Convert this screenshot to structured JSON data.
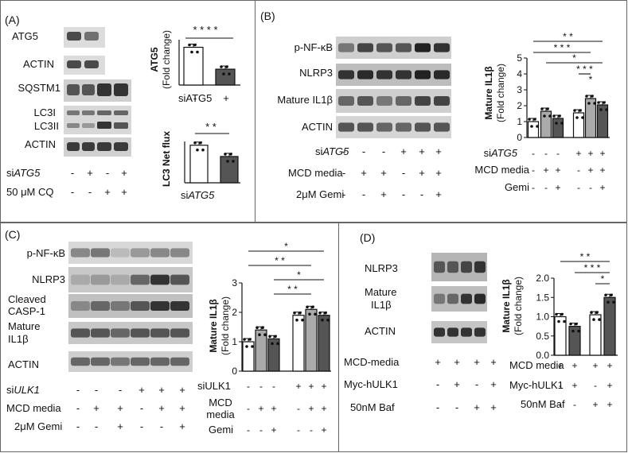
{
  "panels": {
    "A": {
      "label": "(A)",
      "blot_labels": [
        "ATG5",
        "ACTIN",
        "SQSTM1",
        "LC3I",
        "LC3II",
        "ACTIN"
      ],
      "conditions": [
        {
          "label_prefix": "si",
          "label_italic": "ATG5",
          "signs": [
            "-",
            "+",
            "-",
            "+"
          ]
        },
        {
          "label_prefix": "50 μM CQ",
          "label_italic": "",
          "signs": [
            "-",
            "-",
            "+",
            "+"
          ]
        }
      ],
      "chart_atg5": {
        "type": "bar",
        "ylabel_bold": "ATG5",
        "ylabel": "(Fold change)",
        "categories": [
          "-",
          "+"
        ],
        "values": [
          1.0,
          0.42
        ],
        "xlabel": "siATG5",
        "significance": [
          "* * * *"
        ]
      },
      "chart_lc3": {
        "type": "bar",
        "ylabel_bold": "LC3 Net flux",
        "categories": [
          "-",
          "+"
        ],
        "values": [
          1.0,
          0.7
        ],
        "xlabel_prefix": "si",
        "xlabel_italic": "ATG5",
        "significance": [
          "* *"
        ]
      }
    },
    "B": {
      "label": "(B)",
      "blot_labels": [
        "p-NF-κB",
        "NLRP3",
        "Mature IL1β",
        "ACTIN"
      ],
      "conditions": [
        {
          "label_prefix": "si",
          "label_italic": "ATG5",
          "signs": [
            "-",
            "-",
            "-",
            "+",
            "+",
            "+"
          ]
        },
        {
          "label_prefix": "MCD media",
          "label_italic": "",
          "signs": [
            "-",
            "+",
            "+",
            "-",
            "+",
            "+"
          ]
        },
        {
          "label_prefix": "2μM Gemi",
          "label_italic": "",
          "signs": [
            "-",
            "-",
            "+",
            "-",
            "-",
            "+"
          ]
        }
      ],
      "chart_data": {
        "type": "bar",
        "ylabel_bold": "Mature IL1β",
        "ylabel": "(Fold change)",
        "yticks": [
          "0",
          "1",
          "2",
          "3",
          "4",
          "5"
        ],
        "ylim": [
          0,
          5
        ],
        "values": [
          1.0,
          1.65,
          1.2,
          1.55,
          2.45,
          2.05
        ],
        "rows": [
          {
            "label_prefix": "si",
            "label_italic": "ATG5",
            "signs": [
              "-",
              "-",
              "-",
              "+",
              "+",
              "+"
            ]
          },
          {
            "label_prefix": "MCD media",
            "label_italic": "",
            "signs": [
              "-",
              "+",
              "+",
              "-",
              "+",
              "+"
            ]
          },
          {
            "label_prefix": "Gemi",
            "label_italic": "",
            "signs": [
              "-",
              "-",
              "+",
              "-",
              "-",
              "+"
            ]
          }
        ],
        "significance": [
          "* *",
          "* * *",
          "*",
          "* * *",
          "*"
        ]
      }
    },
    "C": {
      "label": "(C)",
      "blot_labels": [
        "p-NF-κB",
        "NLRP3",
        "Cleaved",
        "CASP-1",
        "Mature",
        "IL1β",
        "ACTIN"
      ],
      "conditions": [
        {
          "label_prefix": "si",
          "label_italic": "ULK1",
          "signs": [
            "-",
            "-",
            "-",
            "+",
            "+",
            "+"
          ]
        },
        {
          "label_prefix": "MCD media",
          "label_italic": "",
          "signs": [
            "-",
            "+",
            "+",
            "-",
            "+",
            "+"
          ]
        },
        {
          "label_prefix": "2μM Gemi",
          "label_italic": "",
          "signs": [
            "-",
            "-",
            "+",
            "-",
            "-",
            "+"
          ]
        }
      ],
      "chart_data": {
        "type": "bar",
        "ylabel_bold": "Mature IL1β",
        "ylabel": "(Fold change)",
        "yticks": [
          "0",
          "1",
          "2",
          "3"
        ],
        "ylim": [
          0,
          3
        ],
        "values": [
          1.0,
          1.4,
          1.1,
          1.9,
          2.1,
          1.9
        ],
        "rows": [
          {
            "label": "siULK1",
            "signs": [
              "-",
              "-",
              "-",
              "+",
              "+",
              "+"
            ]
          },
          {
            "label": "MCD",
            "label2": "media",
            "signs": [
              "-",
              "+",
              "+",
              "-",
              "+",
              "+"
            ]
          },
          {
            "label": "Gemi",
            "signs": [
              "-",
              "-",
              "+",
              "-",
              "-",
              "+"
            ]
          }
        ],
        "significance": [
          "*",
          "* *",
          "*",
          "* *"
        ]
      }
    },
    "D": {
      "label": "(D)",
      "blot_labels": [
        "NLRP3",
        "Mature",
        "IL1β",
        "ACTIN"
      ],
      "conditions": [
        {
          "label": "MCD-media",
          "signs": [
            "+",
            "+",
            "+",
            "+"
          ]
        },
        {
          "label": "Myc-hULK1",
          "signs": [
            "-",
            "+",
            "-",
            "+"
          ]
        },
        {
          "label": "50nM Baf",
          "signs": [
            "-",
            "-",
            "+",
            "+"
          ]
        }
      ],
      "chart_data": {
        "type": "bar",
        "ylabel_bold": "Mature IL1β",
        "ylabel": "(Fold change)",
        "yticks": [
          "0.0",
          "0.5",
          "1.0",
          "1.5",
          "2.0"
        ],
        "ylim": [
          0,
          2
        ],
        "values": [
          1.0,
          0.75,
          1.05,
          1.5
        ],
        "rows": [
          {
            "label": "MCD media",
            "signs": [
              "+",
              "+",
              "+",
              "+"
            ]
          },
          {
            "label": "Myc-hULK1",
            "signs": [
              "-",
              "+",
              "-",
              "+"
            ]
          },
          {
            "label": "50nM Baf",
            "signs": [
              "-",
              "-",
              "+",
              "+"
            ]
          }
        ],
        "significance": [
          "* *",
          "* * *",
          "*"
        ]
      }
    }
  }
}
